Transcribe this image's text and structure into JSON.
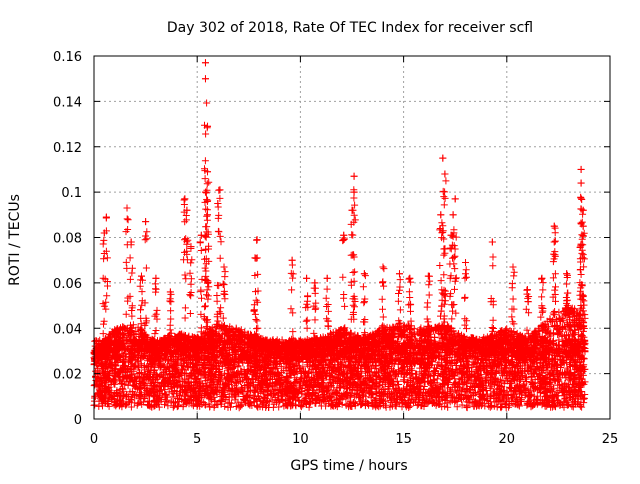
{
  "chart_data": {
    "type": "scatter",
    "title": "Day 302 of 2018, Rate Of TEC Index for receiver scfl",
    "xlabel": "GPS time / hours",
    "ylabel": "ROTI / TECUs",
    "xlim": [
      0,
      25
    ],
    "ylim": [
      0,
      0.16
    ],
    "xticks": [
      0,
      5,
      10,
      15,
      20,
      25
    ],
    "xtick_labels": [
      "0",
      "5",
      "10",
      "15",
      "20",
      "25"
    ],
    "yticks": [
      0,
      0.02,
      0.04,
      0.06,
      0.08,
      0.1,
      0.12,
      0.14,
      0.16
    ],
    "ytick_labels": [
      "0",
      "0.02",
      "0.04",
      "0.06",
      "0.08",
      "0.1",
      "0.12",
      "0.14",
      "0.16"
    ],
    "grid": true,
    "marker": "+",
    "series_color": "#ff0000",
    "data_x_range": [
      0,
      23.8
    ],
    "baseline_band": [
      0.005,
      0.035
    ],
    "approx_background_level": [
      [
        0.0,
        0.03
      ],
      [
        1.0,
        0.04
      ],
      [
        2.0,
        0.042
      ],
      [
        3.0,
        0.034
      ],
      [
        4.0,
        0.038
      ],
      [
        5.0,
        0.036
      ],
      [
        6.0,
        0.042
      ],
      [
        7.0,
        0.04
      ],
      [
        8.0,
        0.036
      ],
      [
        9.0,
        0.034
      ],
      [
        10.0,
        0.034
      ],
      [
        11.0,
        0.036
      ],
      [
        12.0,
        0.04
      ],
      [
        13.0,
        0.036
      ],
      [
        14.0,
        0.04
      ],
      [
        15.0,
        0.042
      ],
      [
        16.0,
        0.04
      ],
      [
        17.0,
        0.042
      ],
      [
        18.0,
        0.036
      ],
      [
        19.0,
        0.036
      ],
      [
        20.0,
        0.04
      ],
      [
        21.0,
        0.036
      ],
      [
        22.0,
        0.044
      ],
      [
        23.0,
        0.05
      ],
      [
        23.8,
        0.046
      ]
    ],
    "peaks": [
      {
        "x": 0.6,
        "y": 0.089
      },
      {
        "x": 0.5,
        "y": 0.082
      },
      {
        "x": 1.6,
        "y": 0.093
      },
      {
        "x": 1.8,
        "y": 0.078
      },
      {
        "x": 2.5,
        "y": 0.087
      },
      {
        "x": 2.3,
        "y": 0.063
      },
      {
        "x": 3.0,
        "y": 0.062
      },
      {
        "x": 3.7,
        "y": 0.056
      },
      {
        "x": 4.4,
        "y": 0.097
      },
      {
        "x": 4.5,
        "y": 0.092
      },
      {
        "x": 4.7,
        "y": 0.076
      },
      {
        "x": 5.2,
        "y": 0.081
      },
      {
        "x": 5.4,
        "y": 0.157
      },
      {
        "x": 5.4,
        "y": 0.15
      },
      {
        "x": 5.5,
        "y": 0.129
      },
      {
        "x": 5.5,
        "y": 0.109
      },
      {
        "x": 5.4,
        "y": 0.1
      },
      {
        "x": 5.5,
        "y": 0.09
      },
      {
        "x": 6.1,
        "y": 0.101
      },
      {
        "x": 6.0,
        "y": 0.095
      },
      {
        "x": 6.3,
        "y": 0.067
      },
      {
        "x": 7.9,
        "y": 0.079
      },
      {
        "x": 7.8,
        "y": 0.071
      },
      {
        "x": 9.6,
        "y": 0.07
      },
      {
        "x": 10.3,
        "y": 0.062
      },
      {
        "x": 10.7,
        "y": 0.06
      },
      {
        "x": 11.3,
        "y": 0.062
      },
      {
        "x": 12.1,
        "y": 0.081
      },
      {
        "x": 12.6,
        "y": 0.107
      },
      {
        "x": 12.6,
        "y": 0.1
      },
      {
        "x": 12.5,
        "y": 0.092
      },
      {
        "x": 13.1,
        "y": 0.064
      },
      {
        "x": 14.0,
        "y": 0.067
      },
      {
        "x": 14.8,
        "y": 0.064
      },
      {
        "x": 15.3,
        "y": 0.062
      },
      {
        "x": 16.2,
        "y": 0.063
      },
      {
        "x": 16.9,
        "y": 0.115
      },
      {
        "x": 17.0,
        "y": 0.108
      },
      {
        "x": 16.8,
        "y": 0.09
      },
      {
        "x": 17.0,
        "y": 0.075
      },
      {
        "x": 17.5,
        "y": 0.097
      },
      {
        "x": 17.4,
        "y": 0.09
      },
      {
        "x": 17.3,
        "y": 0.081
      },
      {
        "x": 18.0,
        "y": 0.069
      },
      {
        "x": 19.3,
        "y": 0.078
      },
      {
        "x": 20.3,
        "y": 0.067
      },
      {
        "x": 21.0,
        "y": 0.057
      },
      {
        "x": 21.7,
        "y": 0.062
      },
      {
        "x": 22.3,
        "y": 0.085
      },
      {
        "x": 22.3,
        "y": 0.078
      },
      {
        "x": 22.9,
        "y": 0.064
      },
      {
        "x": 23.6,
        "y": 0.11
      },
      {
        "x": 23.6,
        "y": 0.104
      },
      {
        "x": 23.7,
        "y": 0.092
      },
      {
        "x": 23.7,
        "y": 0.085
      },
      {
        "x": 23.6,
        "y": 0.077
      }
    ]
  }
}
